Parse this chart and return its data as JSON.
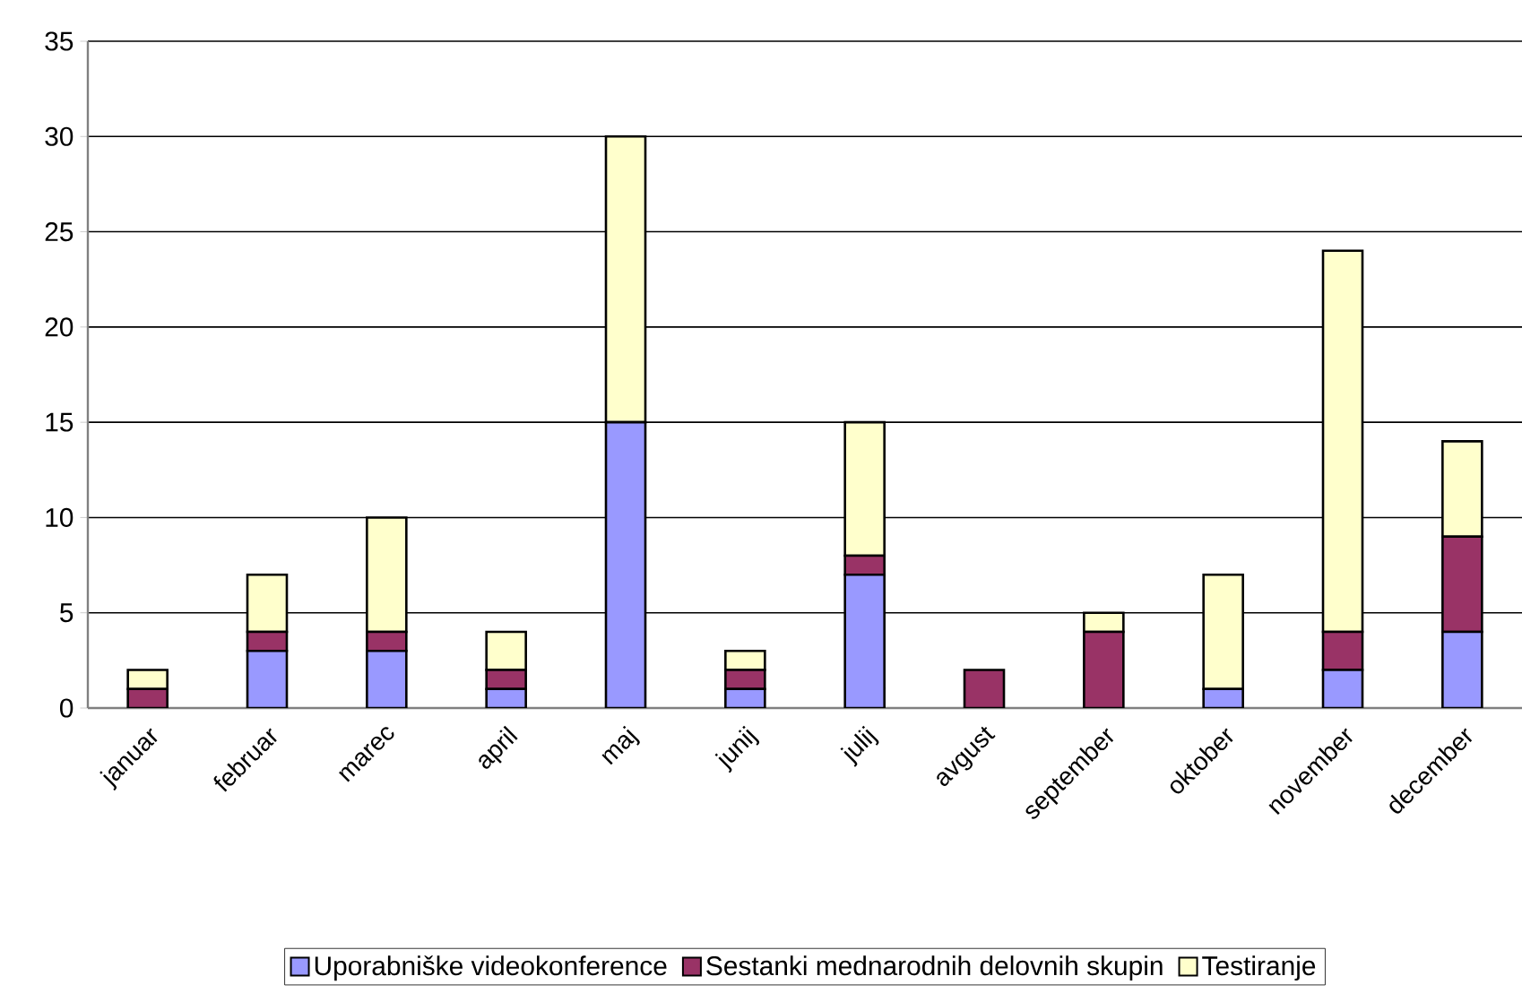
{
  "chart_data": {
    "type": "bar",
    "stacked": true,
    "categories": [
      "januar",
      "februar",
      "marec",
      "april",
      "maj",
      "junij",
      "julij",
      "avgust",
      "september",
      "oktober",
      "november",
      "december"
    ],
    "series": [
      {
        "name": "Uporabniške videokonference",
        "color": "#9999ff",
        "values": [
          0,
          3,
          3,
          1,
          15,
          1,
          7,
          0,
          0,
          1,
          2,
          4
        ]
      },
      {
        "name": "Sestanki mednarodnih delovnih skupin",
        "color": "#993366",
        "values": [
          1,
          1,
          1,
          1,
          0,
          1,
          1,
          2,
          4,
          0,
          2,
          5
        ]
      },
      {
        "name": "Testiranje",
        "color": "#ffffcc",
        "values": [
          1,
          3,
          6,
          2,
          15,
          1,
          7,
          0,
          1,
          6,
          20,
          5
        ]
      }
    ],
    "ylim": [
      0,
      35
    ],
    "yticks": [
      0,
      5,
      10,
      15,
      20,
      25,
      30,
      35
    ],
    "grid": "y",
    "legend": "bottom"
  }
}
